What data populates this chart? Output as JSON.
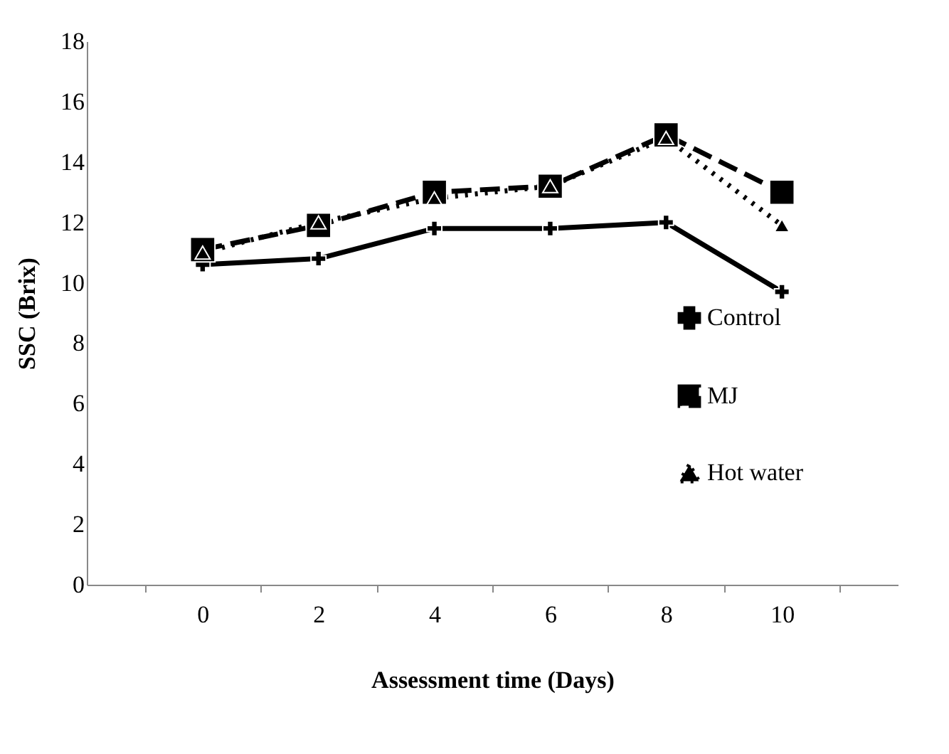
{
  "chart_data": {
    "type": "line",
    "xlabel": "Assessment time (Days)",
    "ylabel": "SSC (Brix)",
    "categories": [
      "0",
      "2",
      "4",
      "6",
      "8",
      "10"
    ],
    "series": [
      {
        "name": "Control",
        "color": "#000000",
        "marker": "cross",
        "line_style": "solid",
        "values": [
          10.6,
          10.8,
          11.8,
          11.8,
          12.0,
          9.7
        ]
      },
      {
        "name": "MJ",
        "color": "#000000",
        "marker": "square",
        "line_style": "dashed",
        "values": [
          11.1,
          11.9,
          13.0,
          13.2,
          14.9,
          13.0
        ]
      },
      {
        "name": "Hot water",
        "color": "#000000",
        "marker": "triangle",
        "line_style": "dotted",
        "values": [
          11.0,
          12.0,
          12.8,
          13.2,
          14.8,
          11.9
        ]
      }
    ],
    "ylim": [
      0,
      18
    ],
    "yticks": [
      0,
      2,
      4,
      6,
      8,
      10,
      12,
      14,
      16,
      18
    ],
    "grid": false,
    "legend": "bottom right"
  }
}
